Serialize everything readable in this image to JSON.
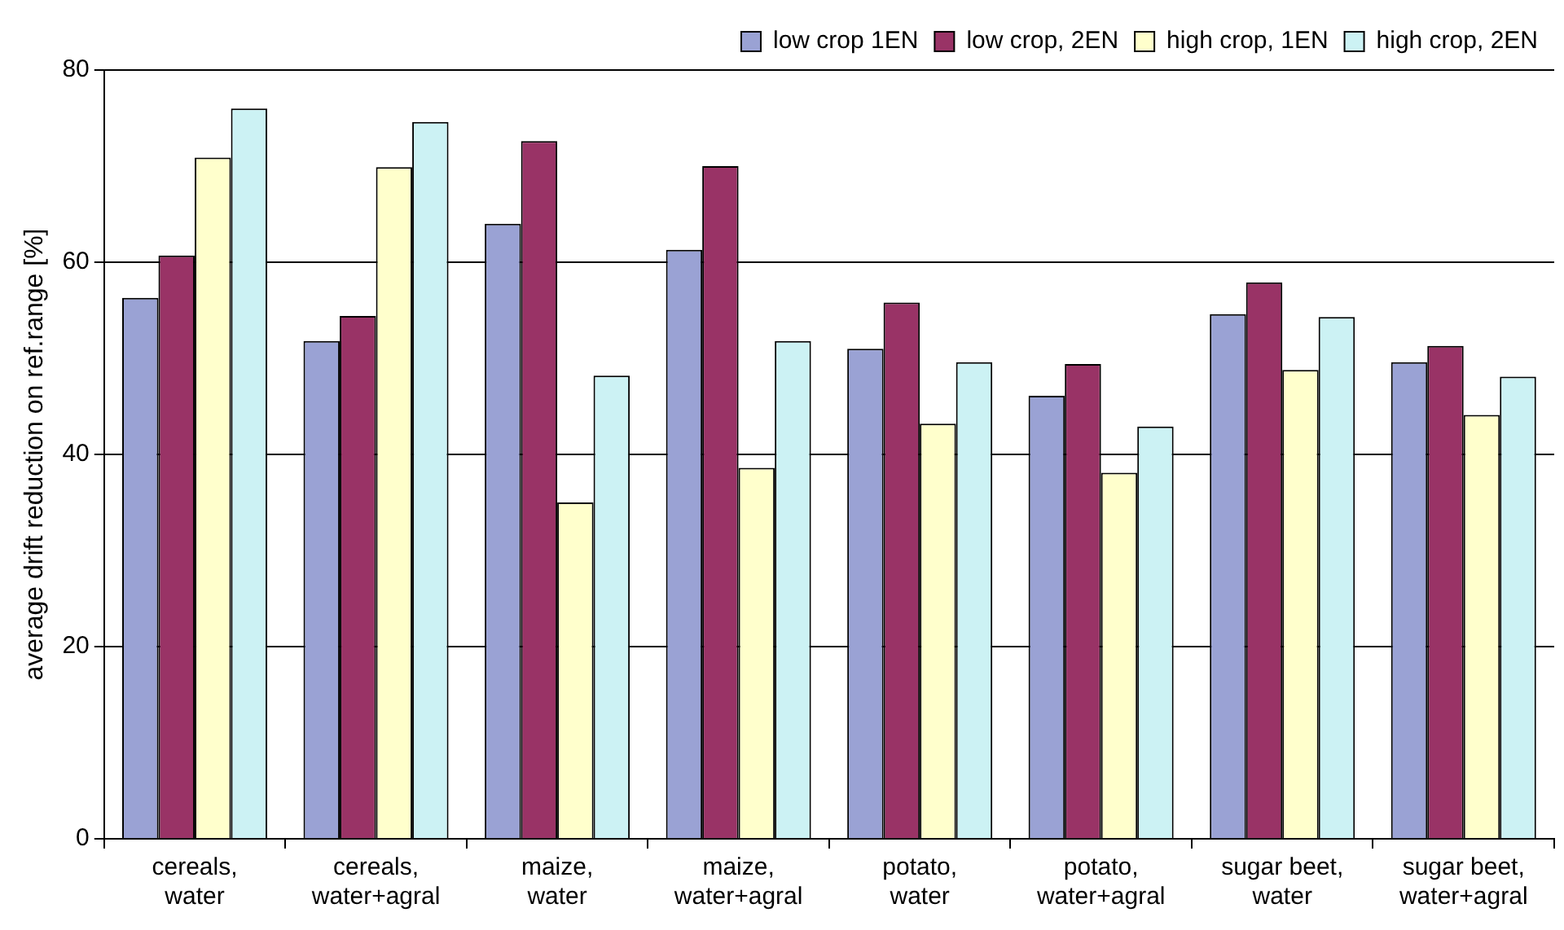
{
  "chart_data": {
    "type": "bar",
    "ylabel": "average drift reduction on ref.range [%]",
    "categories": [
      "cereals, water",
      "cereals, water+agral",
      "maize, water",
      "maize, water+agral",
      "potato, water",
      "potato, water+agral",
      "sugar beet, water",
      "sugar beet, water+agral"
    ],
    "series": [
      {
        "name": "low crop 1EN",
        "color": "#9aa2d4",
        "values": [
          56.3,
          51.8,
          64,
          61.3,
          51,
          46.1,
          54.6,
          49.6
        ]
      },
      {
        "name": "low crop, 2EN",
        "color": "#993366",
        "values": [
          60.7,
          54.4,
          72.6,
          70,
          55.8,
          49.4,
          57.9,
          51.3
        ]
      },
      {
        "name": "high crop, 1EN",
        "color": "#ffffcc",
        "values": [
          70.9,
          69.9,
          35,
          38.6,
          43.2,
          38.1,
          48.8,
          44.1
        ]
      },
      {
        "name": "high crop, 2EN",
        "color": "#ccf2f4",
        "values": [
          76,
          74.6,
          48.2,
          51.8,
          49.6,
          42.9,
          54.3,
          48.1
        ]
      }
    ],
    "ylim": [
      0,
      80
    ],
    "yticks": [
      0,
      20,
      40,
      60,
      80
    ],
    "grid": "y",
    "legend": "top right"
  }
}
